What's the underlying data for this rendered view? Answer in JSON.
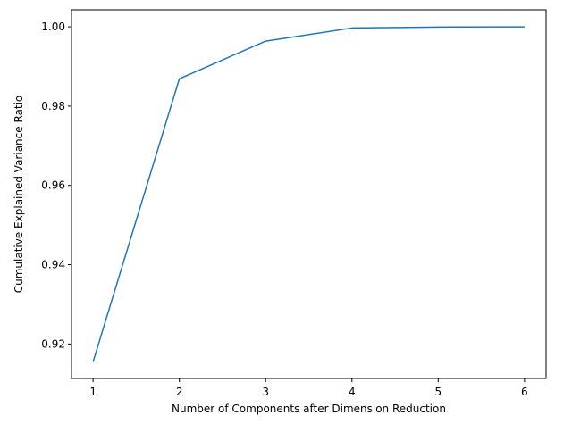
{
  "chart_data": {
    "type": "line",
    "title": "",
    "xlabel": "Number of Components after Dimension Reduction",
    "ylabel": "Cumulative Explained Variance Ratio",
    "x": [
      1,
      2,
      3,
      4,
      5,
      6
    ],
    "series": [
      {
        "values": [
          0.9155,
          0.9869,
          0.9964,
          0.9997,
          0.99995,
          1.0
        ],
        "color": "#1f77b4"
      }
    ],
    "xlim": [
      0.75,
      6.25
    ],
    "ylim": [
      0.9113,
      1.0043
    ],
    "xticks": [
      "1",
      "2",
      "3",
      "4",
      "5",
      "6"
    ],
    "yticks": [
      "0.92",
      "0.94",
      "0.96",
      "0.98",
      "1.00"
    ],
    "grid": false,
    "legend": "none"
  }
}
